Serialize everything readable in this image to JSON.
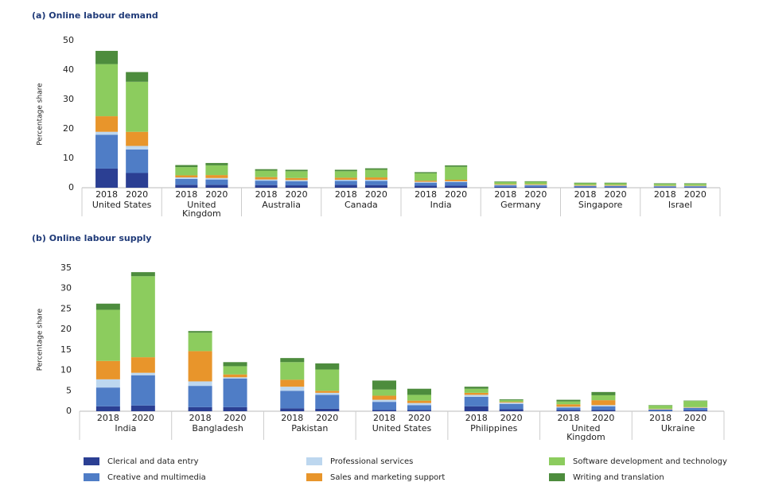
{
  "chart_data": [
    {
      "type": "bar",
      "stacked": true,
      "title": "(a) Online labour demand",
      "y_label": "Percentage share",
      "groups": [
        "United States",
        "United Kingdom",
        "Australia",
        "Canada",
        "India",
        "Germany",
        "Singapore",
        "Israel"
      ],
      "categories": [
        "2018",
        "2020",
        "2018",
        "2020",
        "2018",
        "2020",
        "2018",
        "2020",
        "2018",
        "2020",
        "2018",
        "2020",
        "2018",
        "2020",
        "2018",
        "2020"
      ],
      "ylim": [
        0,
        50
      ],
      "yticks": [
        0,
        10,
        20,
        30,
        40,
        50
      ],
      "grid": false,
      "series": [
        {
          "color": "#2b3f93",
          "values": [
            6.5,
            5,
            1,
            1,
            0.9,
            0.8,
            1,
            0.9,
            0.7,
            0.7,
            0.3,
            0.3,
            0.2,
            0.2,
            0.2,
            0.2
          ]
        },
        {
          "color": "#4f7dc6",
          "values": [
            11.5,
            8,
            2,
            1.8,
            1.5,
            1.4,
            1.3,
            1.4,
            1,
            1.2,
            0.5,
            0.5,
            0.4,
            0.4,
            0.3,
            0.3
          ]
        },
        {
          "color": "#bdd7ef",
          "values": [
            1,
            1.2,
            0.5,
            0.5,
            0.4,
            0.4,
            0.4,
            0.4,
            0.3,
            0.3,
            0.2,
            0.2,
            0.1,
            0.1,
            0.1,
            0.1
          ]
        },
        {
          "color": "#e8952b",
          "values": [
            5.3,
            4.8,
            0.7,
            1,
            0.8,
            0.7,
            0.7,
            0.8,
            0.4,
            0.5,
            0.2,
            0.2,
            0.2,
            0.2,
            0.1,
            0.1
          ]
        },
        {
          "color": "#8ccc5e",
          "values": [
            17.7,
            17,
            2.8,
            3.3,
            2.2,
            2.3,
            2.2,
            2.6,
            2.5,
            4.4,
            0.7,
            0.8,
            0.6,
            0.6,
            0.6,
            0.6
          ]
        },
        {
          "color": "#4d8c3d",
          "values": [
            4.5,
            3.3,
            0.7,
            0.8,
            0.5,
            0.5,
            0.5,
            0.5,
            0.4,
            0.5,
            0.2,
            0.2,
            0.2,
            0.2,
            0.2,
            0.2
          ]
        }
      ]
    },
    {
      "type": "bar",
      "stacked": true,
      "title": "(b) Online labour supply",
      "y_label": "Percentage share",
      "groups": [
        "India",
        "Bangladesh",
        "Pakistan",
        "United States",
        "Philippines",
        "United Kingdom",
        "Ukraine"
      ],
      "categories": [
        "2018",
        "2020",
        "2018",
        "2020",
        "2018",
        "2020",
        "2018",
        "2020",
        "2018",
        "2020",
        "2018",
        "2020",
        "2018",
        "2020"
      ],
      "ylim": [
        0,
        35
      ],
      "yticks": [
        0,
        5,
        10,
        15,
        20,
        25,
        30,
        35
      ],
      "grid": false,
      "series": [
        {
          "name": "Clerical and data entry",
          "color": "#2b3f93",
          "values": [
            1.2,
            1.4,
            1,
            1,
            0.7,
            0.6,
            0.3,
            0.3,
            1.2,
            0.5,
            0.3,
            0.3,
            0.1,
            0.2
          ]
        },
        {
          "name": "Creative and multimedia",
          "color": "#4f7dc6",
          "values": [
            4.6,
            7.4,
            5.2,
            7,
            4.3,
            3.4,
            2,
            1.2,
            2.3,
            1.3,
            0.6,
            0.9,
            0.3,
            0.6
          ]
        },
        {
          "name": "Professional services",
          "color": "#bdd7ef",
          "values": [
            2,
            0.6,
            1.1,
            0.3,
            1,
            0.5,
            0.5,
            0.5,
            0.5,
            0.3,
            0.2,
            0.3,
            0.1,
            0.1
          ]
        },
        {
          "name": "Sales and marketing support",
          "color": "#e8952b",
          "values": [
            4.5,
            3.8,
            7.4,
            0.7,
            1.7,
            0.5,
            1,
            0.6,
            0.5,
            0.2,
            0.6,
            1.2,
            0.1,
            0.1
          ]
        },
        {
          "name": "Software development and technology",
          "color": "#8ccc5e",
          "values": [
            12.5,
            19.8,
            4.5,
            2,
            4.3,
            5.2,
            1.5,
            1.4,
            1,
            0.4,
            0.7,
            1.2,
            0.8,
            1.5
          ]
        },
        {
          "name": "Writing and translation",
          "color": "#4d8c3d",
          "values": [
            1.5,
            1,
            0.4,
            1,
            1,
            1.5,
            2.2,
            1.5,
            0.5,
            0.2,
            0.4,
            0.8,
            0.1,
            0.1
          ]
        }
      ]
    }
  ]
}
